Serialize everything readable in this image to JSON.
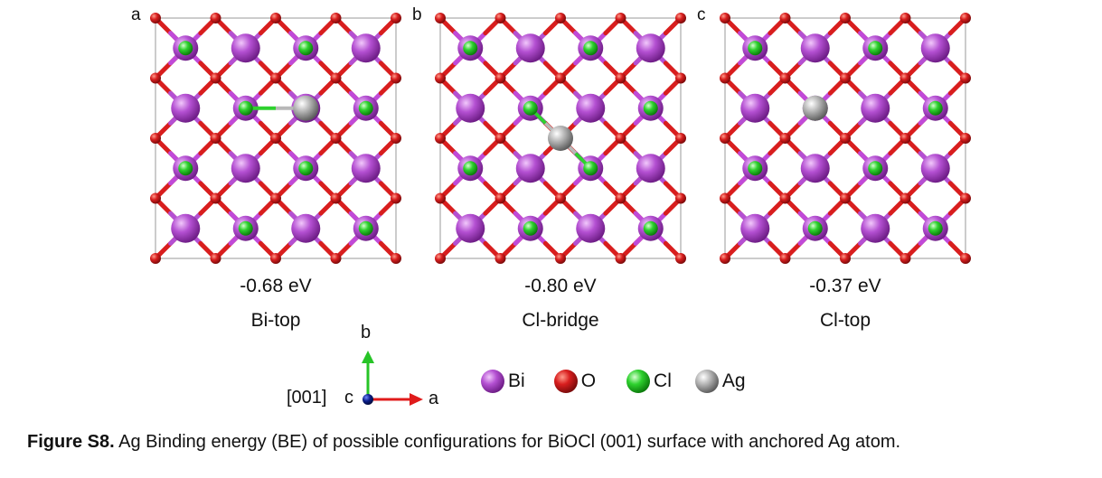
{
  "panels": [
    {
      "letter": "a",
      "energy": "-0.68 eV",
      "site": "Bi-top",
      "ag_site": "bi-top"
    },
    {
      "letter": "b",
      "energy": "-0.80 eV",
      "site": "Cl-bridge",
      "ag_site": "cl-bridge"
    },
    {
      "letter": "c",
      "energy": "-0.37 eV",
      "site": "Cl-top",
      "ag_site": "cl-top"
    }
  ],
  "axes": {
    "b": "b",
    "a": "a",
    "c": "c",
    "direction": "[001]"
  },
  "legend": [
    {
      "label": "Bi",
      "color": "#b450d2"
    },
    {
      "label": "O",
      "color": "#d81e1e"
    },
    {
      "label": "Cl",
      "color": "#2ed12e"
    },
    {
      "label": "Ag",
      "color": "#a8a8a8"
    }
  ],
  "colors": {
    "bi": "#b450d2",
    "o": "#d81e1e",
    "cl": "#2ed12e",
    "ag": "#a8a8a8",
    "axis_b": "#27c427",
    "axis_a": "#e01b1b",
    "axis_c": "#0b1e8a"
  },
  "caption": {
    "label": "Figure S8.",
    "text": " Ag Binding energy (BE) of possible configurations for BiOCl (001) surface with anchored Ag atom."
  }
}
